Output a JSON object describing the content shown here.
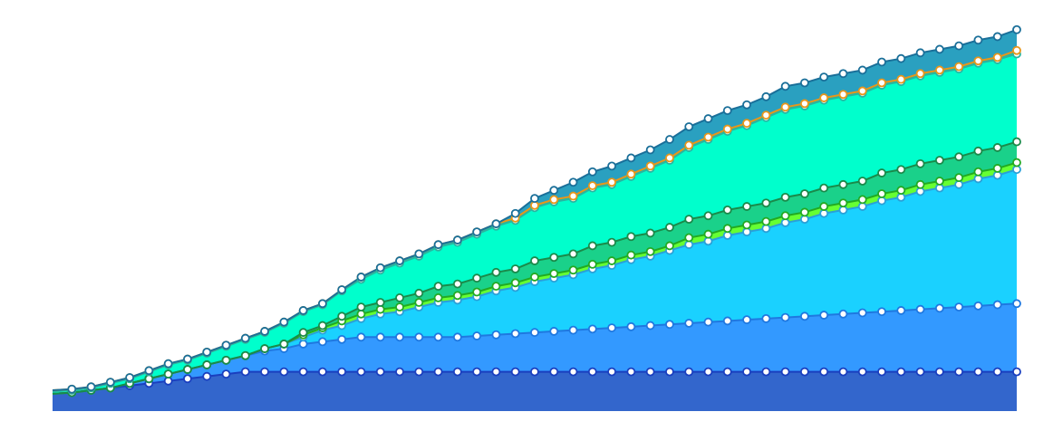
{
  "chart_data": {
    "type": "area",
    "stacked": true,
    "title": "",
    "xlabel": "",
    "ylabel": "",
    "grid": false,
    "legend": "none",
    "axes_visible": false,
    "xlim": [
      0,
      50
    ],
    "ylim": [
      0,
      170
    ],
    "x": [
      0,
      1,
      2,
      3,
      4,
      5,
      6,
      7,
      8,
      9,
      10,
      11,
      12,
      13,
      14,
      15,
      16,
      17,
      18,
      19,
      20,
      21,
      22,
      23,
      24,
      25,
      26,
      27,
      28,
      29,
      30,
      31,
      32,
      33,
      34,
      35,
      36,
      37,
      38,
      39,
      40,
      41,
      42,
      43,
      44,
      45,
      46,
      47,
      48,
      49,
      50
    ],
    "series": [
      {
        "fill": "#3366cc",
        "line": "#1a3fbf",
        "values": [
          7.5,
          8,
          9,
          10,
          11,
          12,
          13,
          14,
          15,
          16,
          17,
          17,
          17,
          17,
          17,
          17,
          17,
          17,
          17,
          17,
          17,
          17,
          17,
          17,
          17,
          17,
          17,
          17,
          17,
          17,
          17,
          17,
          17,
          17,
          17,
          17,
          17,
          17,
          17,
          17,
          17,
          17,
          17,
          17,
          17,
          17,
          17,
          17,
          17,
          17,
          17
        ]
      },
      {
        "fill": "#3399ff",
        "line": "#1f78e0",
        "values": [
          0,
          0,
          0,
          0,
          1,
          2,
          3,
          4,
          5,
          6,
          7,
          9,
          10,
          12,
          13,
          14,
          15,
          15,
          15,
          15,
          15,
          15,
          15.5,
          16,
          16.5,
          17,
          17.5,
          18,
          18.5,
          19,
          19.5,
          20,
          20.5,
          21,
          21.5,
          22,
          22.5,
          23,
          23.5,
          24,
          24.5,
          25,
          25.5,
          26,
          26.5,
          27,
          27.5,
          28,
          28.5,
          29,
          29.5
        ]
      },
      {
        "fill": "#1ad1ff",
        "line": "#2aa0d8",
        "values": [
          0,
          0,
          0,
          0,
          0,
          0,
          0,
          0,
          0,
          0,
          0,
          1,
          2,
          3,
          5,
          6,
          8,
          10,
          11,
          13,
          15,
          16,
          17,
          19,
          20,
          22,
          23,
          24,
          26,
          27,
          29,
          30,
          32,
          34,
          35,
          37,
          38,
          39,
          41,
          42,
          44,
          45,
          46,
          48,
          49,
          51,
          52,
          53,
          55,
          56,
          58
        ]
      },
      {
        "fill": "#66ff33",
        "line": "#22aa22",
        "values": [
          0,
          0,
          0,
          0,
          0,
          0,
          0,
          0,
          0,
          0,
          0,
          0,
          0,
          1,
          1,
          2,
          2,
          2,
          2,
          2,
          2,
          2,
          2,
          2,
          2,
          2,
          2,
          2,
          2,
          2,
          2,
          2,
          2,
          3,
          3,
          3,
          3,
          3,
          3,
          3,
          3,
          3,
          3,
          3,
          3,
          3,
          3,
          3,
          3,
          3,
          3
        ]
      },
      {
        "fill": "#1ad18a",
        "line": "#1a8a4a",
        "values": [
          0,
          0,
          0,
          0,
          0,
          0,
          0,
          0,
          0,
          0,
          0,
          0,
          0,
          1,
          1,
          2,
          3,
          3,
          4,
          4,
          5,
          5,
          6,
          6,
          6,
          7,
          7,
          7,
          8,
          8,
          8,
          8,
          8,
          8,
          8,
          8,
          8,
          8,
          8,
          8,
          8,
          8,
          8,
          9,
          9,
          9,
          9,
          9,
          9,
          9,
          9
        ]
      },
      {
        "fill": "#00ffcc",
        "line": "#29b5a0",
        "values": [
          1,
          1,
          1,
          2,
          2,
          3,
          4,
          4,
          5,
          6,
          7,
          7,
          9,
          9,
          9,
          11,
          12,
          14,
          15,
          16,
          17,
          18,
          19,
          20,
          21,
          23,
          24,
          24,
          25,
          25,
          26,
          28,
          29,
          31,
          33,
          34,
          35,
          37,
          38,
          38,
          38,
          38,
          38,
          38,
          38,
          38,
          38,
          38,
          38,
          38,
          38
        ]
      },
      {
        "fill": "#29b5a0",
        "line": "#e8961a",
        "values": [
          0.5,
          0.5,
          0.5,
          0.5,
          0.5,
          0.5,
          0.5,
          0.5,
          0.5,
          0.5,
          0.5,
          0.5,
          0.5,
          0.5,
          0.5,
          0.5,
          1,
          1,
          1,
          1,
          1,
          1,
          1,
          1,
          1,
          1,
          1,
          1,
          1,
          1,
          1,
          1,
          1,
          1,
          1,
          1,
          1,
          1,
          1,
          1,
          1,
          1,
          1,
          1,
          1,
          1,
          1,
          1,
          1,
          1,
          1.5
        ]
      },
      {
        "fill": "#2aa0c0",
        "line": "#1a6f99",
        "values": [
          0,
          0,
          0,
          0,
          0,
          0,
          0,
          0,
          0,
          0,
          0,
          0,
          0,
          0,
          0,
          0,
          0,
          0,
          0,
          0,
          0,
          0,
          0,
          0,
          2,
          3,
          4,
          6,
          6,
          7,
          7,
          7,
          8,
          8,
          8,
          8,
          8,
          8,
          9,
          9,
          9,
          9,
          9,
          9,
          9,
          9,
          9,
          9,
          9,
          9,
          9
        ]
      }
    ]
  }
}
